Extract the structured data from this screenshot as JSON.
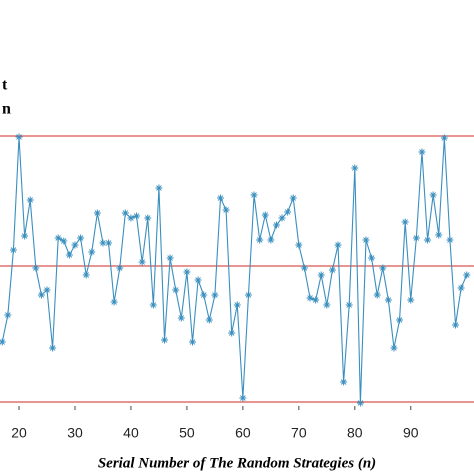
{
  "chart_data": {
    "type": "line",
    "annotations": [
      "t",
      "n"
    ],
    "x_label": "Serial Number of The Random Strategies (n)",
    "x": [
      17,
      18,
      19,
      20,
      21,
      22,
      23,
      24,
      25,
      26,
      27,
      28,
      29,
      30,
      31,
      32,
      33,
      34,
      35,
      36,
      37,
      38,
      39,
      40,
      41,
      42,
      43,
      44,
      45,
      46,
      47,
      48,
      49,
      50,
      51,
      52,
      53,
      54,
      55,
      56,
      57,
      58,
      59,
      60,
      61,
      62,
      63,
      64,
      65,
      66,
      67,
      68,
      69,
      70,
      71,
      72,
      73,
      74,
      75,
      76,
      77,
      78,
      79,
      80,
      81,
      82,
      83,
      84,
      85,
      86,
      87,
      88,
      89,
      90,
      91,
      92,
      93,
      94,
      95,
      96,
      97,
      98,
      99,
      100
    ],
    "series": [
      {
        "color": "#3a8fbf",
        "values": [
          68,
          95,
          160,
          273,
          174,
          210,
          142,
          115,
          120,
          62,
          172,
          169,
          155,
          165,
          172,
          135,
          158,
          197,
          167,
          167,
          108,
          142,
          197,
          192,
          194,
          148,
          192,
          105,
          222,
          70,
          152,
          120,
          92,
          138,
          68,
          130,
          115,
          90,
          115,
          212,
          200,
          77,
          105,
          12,
          115,
          215,
          170,
          195,
          170,
          185,
          192,
          198,
          212,
          165,
          142,
          112,
          110,
          135,
          105,
          140,
          165,
          28,
          105,
          242,
          7,
          170,
          152,
          115,
          142,
          110,
          62,
          90,
          188,
          110,
          172,
          258,
          170,
          215,
          175,
          272,
          170,
          85,
          122,
          135
        ]
      }
    ],
    "hlines": [
      274,
      144,
      8
    ],
    "hline_color": "#d9534f",
    "xlim": [
      16.6,
      101.3
    ],
    "ylim": [
      0,
      410
    ],
    "xticks": [
      20,
      30,
      40,
      50,
      60,
      70,
      80,
      90
    ]
  }
}
